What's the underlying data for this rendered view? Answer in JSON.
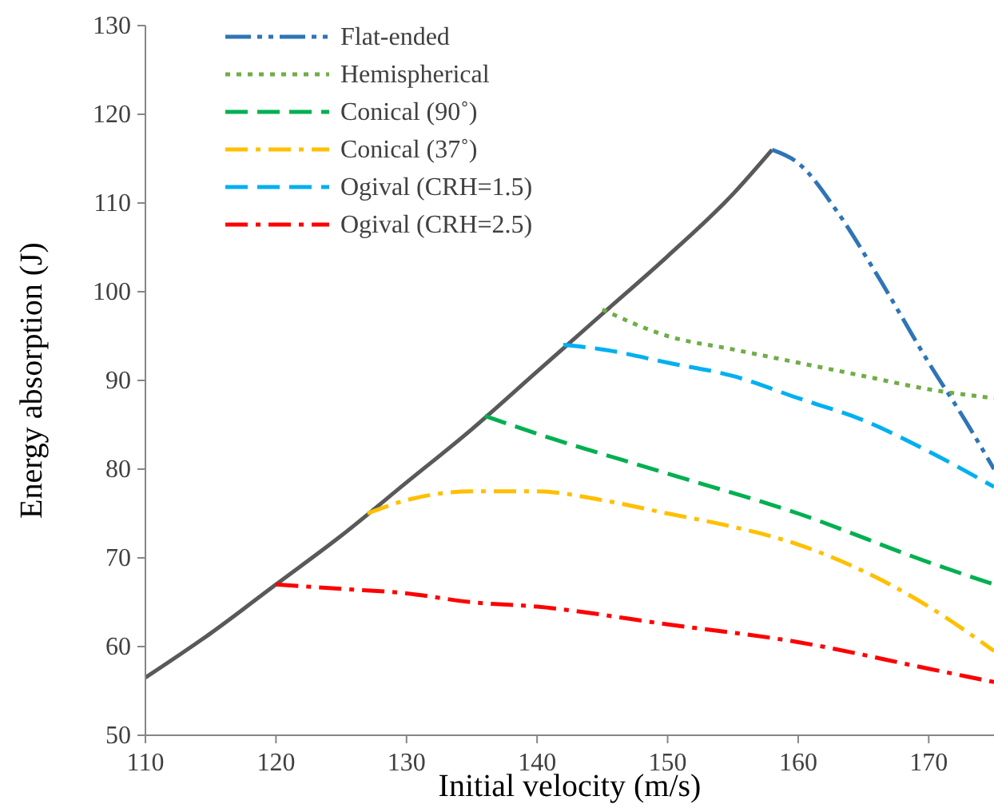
{
  "chart_data": {
    "type": "line",
    "xlabel": "Initial velocity  (m/s)",
    "ylabel": "Energy absorption (J)",
    "xlim": [
      110,
      175
    ],
    "xticks": [
      110,
      120,
      130,
      140,
      150,
      160,
      170
    ],
    "ylim": [
      50,
      130
    ],
    "yticks": [
      50,
      60,
      70,
      80,
      90,
      100,
      110,
      120,
      130
    ],
    "grid": false,
    "legend": "top left",
    "marker": "none",
    "series": [
      {
        "color": "#595959",
        "line_style": "solid",
        "x": [
          110,
          115,
          120,
          125,
          130,
          135,
          140,
          145,
          150,
          155,
          158
        ],
        "values": [
          56.5,
          61.5,
          67,
          72.5,
          78.5,
          84.5,
          91,
          97.5,
          104,
          111,
          116
        ]
      },
      {
        "name": "Flat-ended",
        "color": "#2e75b6",
        "line_style": "dashdotdot",
        "x": [
          158,
          160,
          163,
          166,
          170,
          173,
          175
        ],
        "values": [
          116,
          114.5,
          109,
          102,
          92,
          85,
          80
        ]
      },
      {
        "name": "Hemispherical",
        "color": "#70ad47",
        "line_style": "dotted",
        "x": [
          145,
          150,
          155,
          160,
          165,
          170,
          175
        ],
        "values": [
          98,
          95,
          93.5,
          92,
          90.5,
          89,
          88
        ]
      },
      {
        "name": "Conical (90˚)",
        "color": "#00b050",
        "line_style": "dashed",
        "x": [
          136,
          140,
          150,
          160,
          170,
          175
        ],
        "values": [
          86,
          84,
          79.5,
          75,
          69.5,
          67
        ]
      },
      {
        "name": "Conical (37˚)",
        "color": "#ffc000",
        "line_style": "dashdot",
        "x": [
          127,
          130,
          135,
          140,
          145,
          150,
          155,
          160,
          165,
          170,
          175
        ],
        "values": [
          75,
          76.5,
          77.5,
          77.5,
          76.5,
          75,
          73.5,
          71.5,
          68.5,
          64.5,
          59.5
        ]
      },
      {
        "name": "Ogival (CRH=1.5)",
        "color": "#00b0f0",
        "line_style": "dashed",
        "x": [
          142,
          145,
          150,
          155,
          160,
          165,
          170,
          175
        ],
        "values": [
          94,
          93.5,
          92,
          90.5,
          88,
          85.5,
          82,
          78
        ]
      },
      {
        "name": "Ogival (CRH=2.5)",
        "color": "#ff0000",
        "line_style": "dashdot",
        "x": [
          120,
          125,
          130,
          135,
          140,
          150,
          160,
          170,
          175
        ],
        "values": [
          67,
          66.5,
          66,
          65,
          64.5,
          62.5,
          60.5,
          57.5,
          56
        ]
      }
    ]
  }
}
